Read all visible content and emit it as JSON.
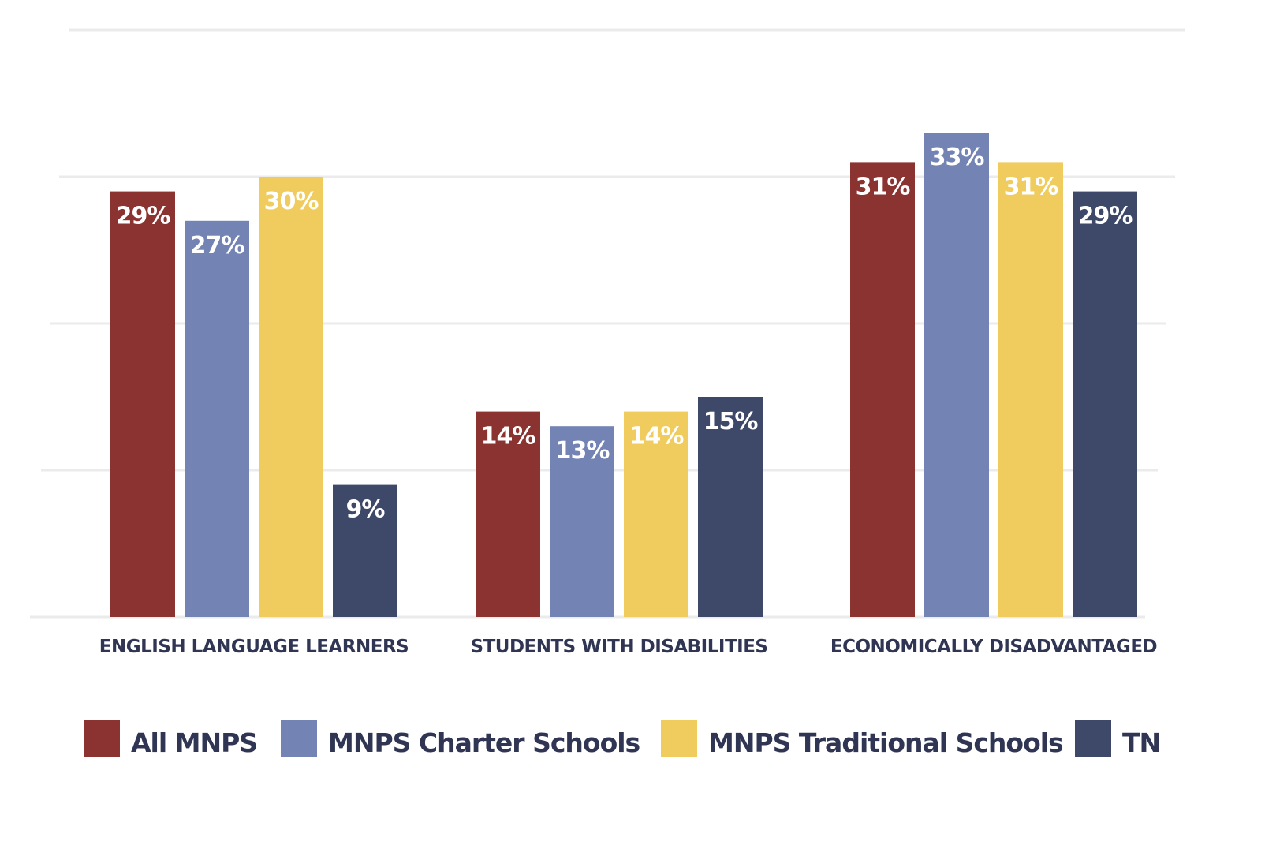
{
  "chart_data": {
    "type": "bar",
    "categories": [
      "ENGLISH LANGUAGE LEARNERS",
      "STUDENTS WITH DISABILITIES",
      "ECONOMICALLY DISADVANTAGED"
    ],
    "series": [
      {
        "name": "All MNPS",
        "color": "#8b3330",
        "values": [
          29,
          14,
          31
        ],
        "labels": [
          "29%",
          "14%",
          "31%"
        ]
      },
      {
        "name": "MNPS Charter Schools",
        "color": "#7283b4",
        "values": [
          27,
          13,
          33
        ],
        "labels": [
          "27%",
          "13%",
          "33%"
        ]
      },
      {
        "name": "MNPS Traditional Schools",
        "color": "#f0cc5f",
        "values": [
          30,
          14,
          31
        ],
        "labels": [
          "30%",
          "14%",
          "31%"
        ]
      },
      {
        "name": "TN",
        "color": "#3e4969",
        "values": [
          9,
          15,
          29
        ],
        "labels": [
          "9%",
          "15%",
          "29%"
        ]
      }
    ],
    "ylim": [
      0,
      40
    ],
    "grid": true,
    "legend": "bottom",
    "data_labels": "inside-top"
  }
}
